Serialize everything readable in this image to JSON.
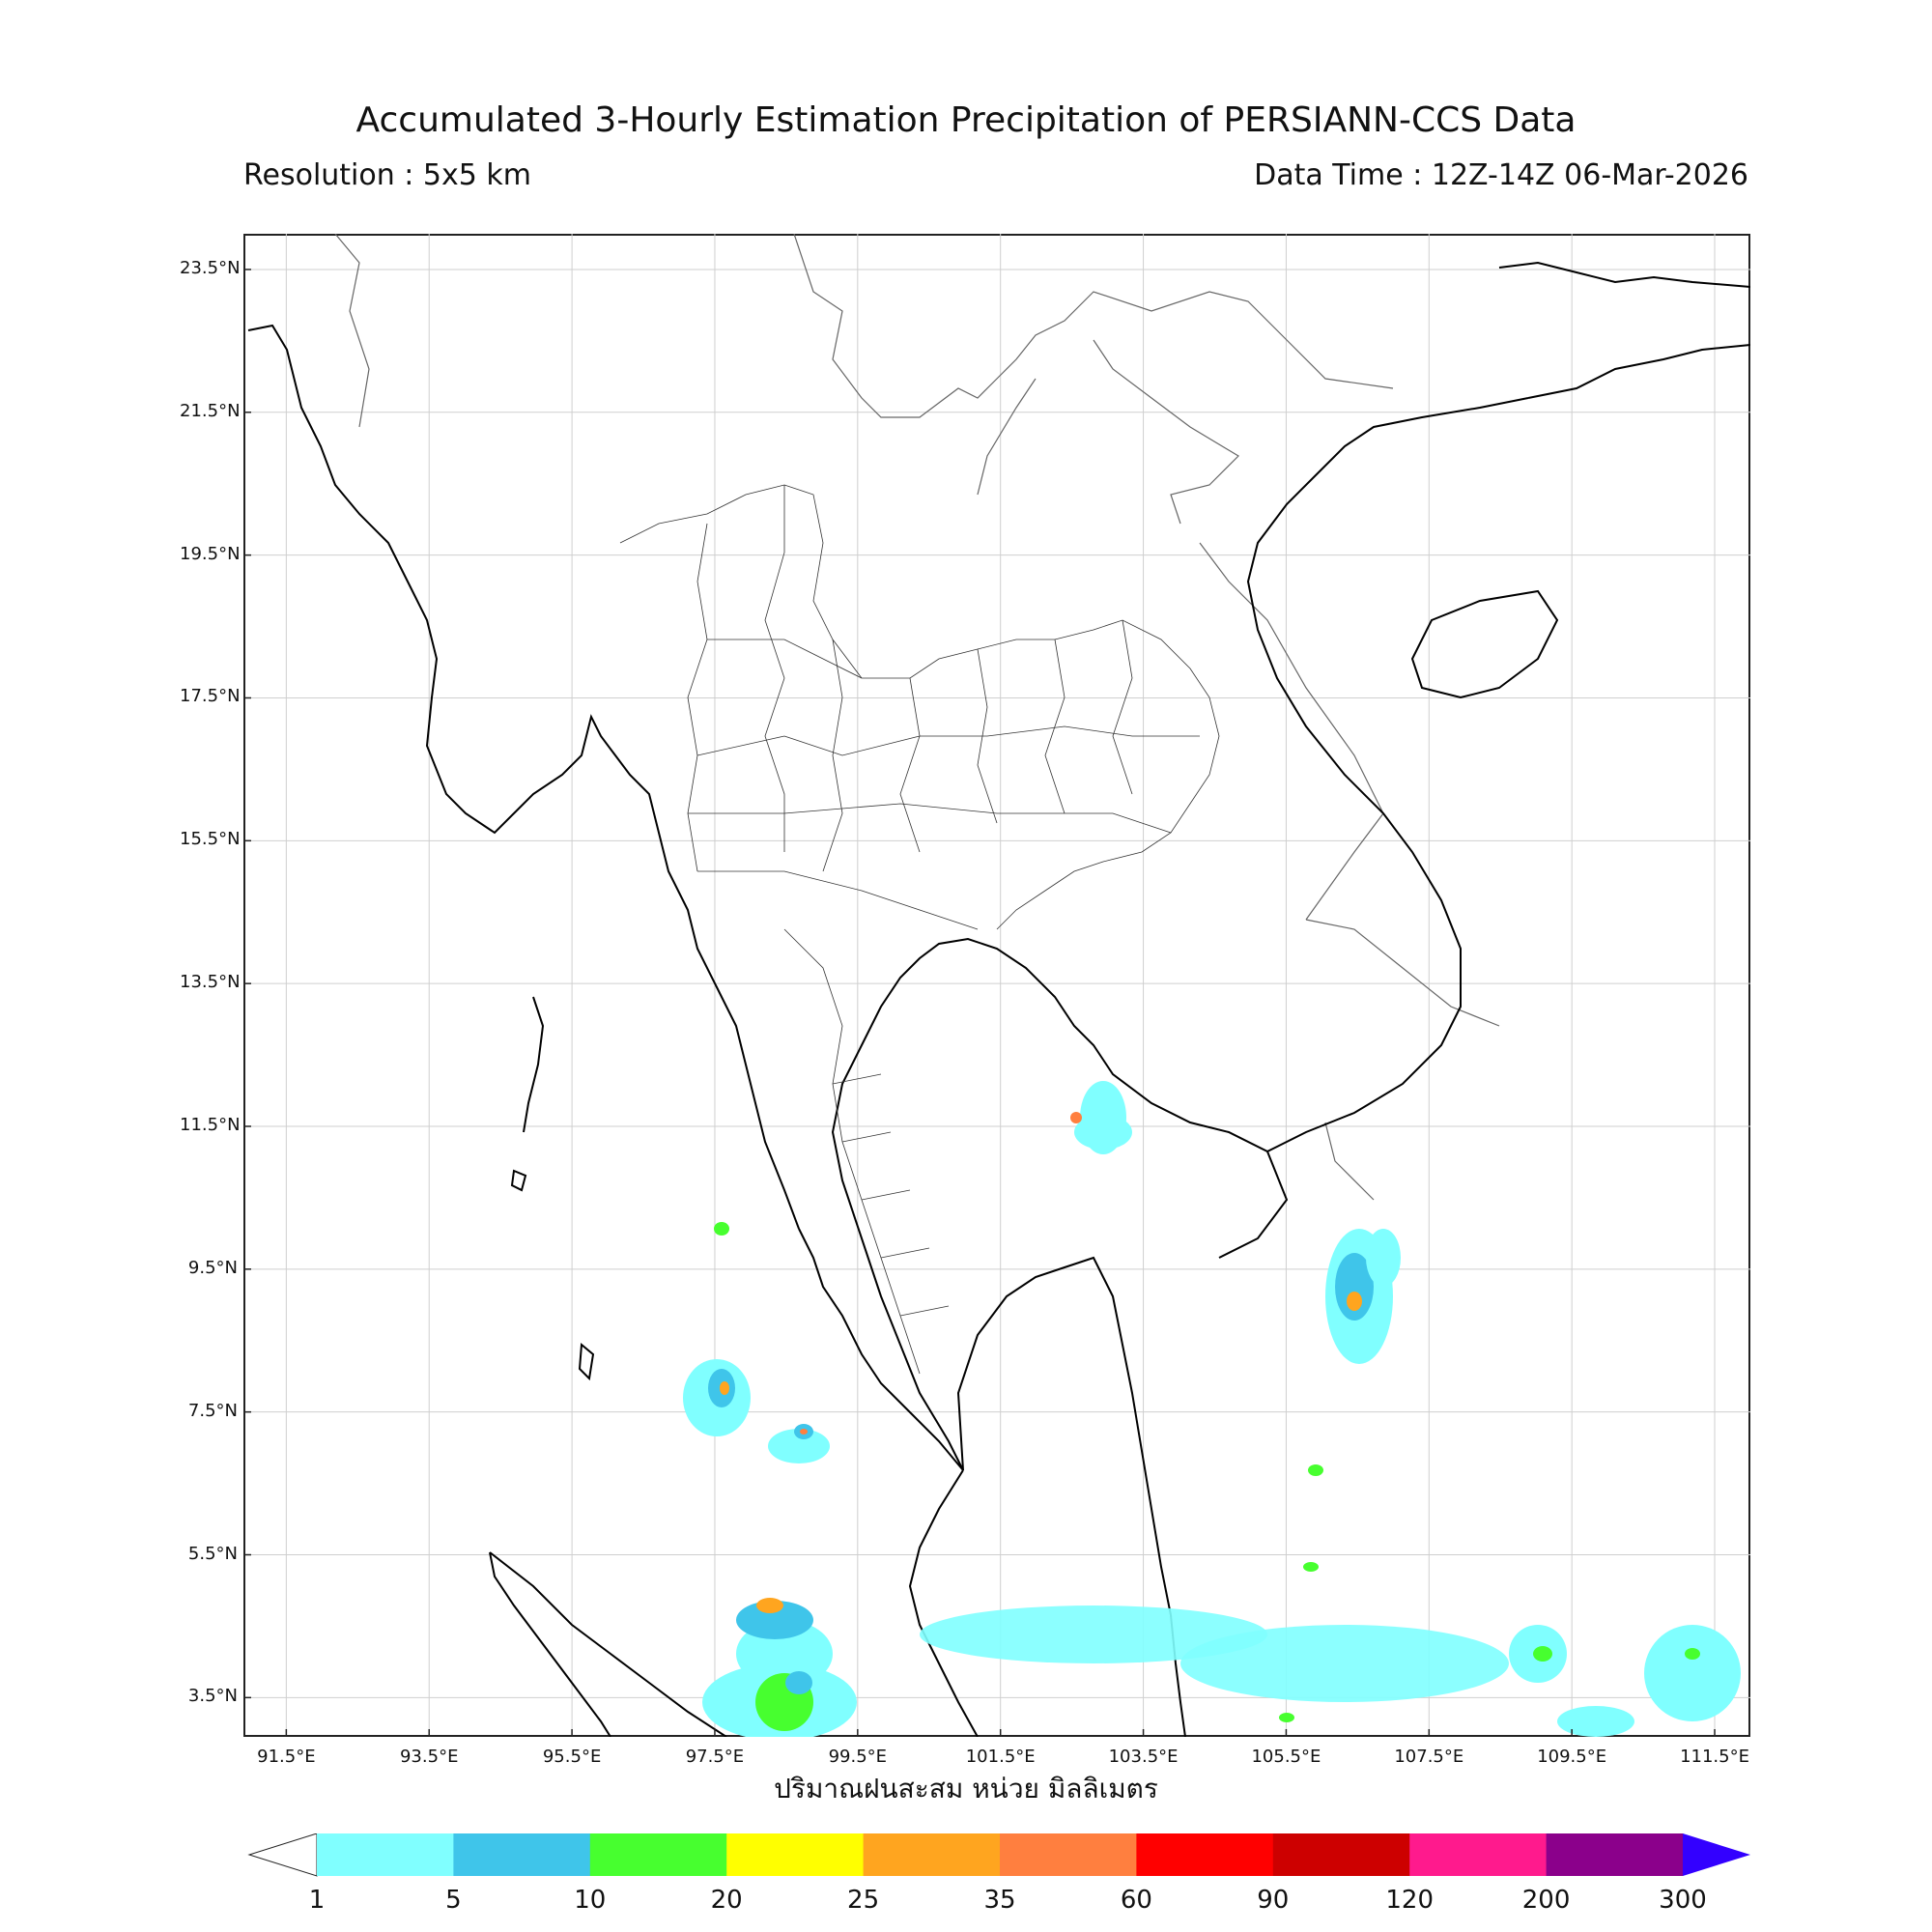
{
  "header": {
    "title": "Accumulated 3-Hourly Estimation Precipitation of PERSIANN-CCS Data",
    "resolution": "Resolution : 5x5 km",
    "data_time": "Data Time : 12Z-14Z 06-Mar-2026"
  },
  "map": {
    "lat_ticks": [
      "23.5°N",
      "21.5°N",
      "19.5°N",
      "17.5°N",
      "15.5°N",
      "13.5°N",
      "11.5°N",
      "9.5°N",
      "7.5°N",
      "5.5°N",
      "3.5°N"
    ],
    "lon_ticks": [
      "91.5°E",
      "93.5°E",
      "95.5°E",
      "97.5°E",
      "99.5°E",
      "101.5°E",
      "103.5°E",
      "105.5°E",
      "107.5°E",
      "109.5°E",
      "111.5°E"
    ],
    "x_axis_title": "ปริมาณฝนสะสม หน่วย มิลลิเมตร",
    "lon_range": [
      90.9,
      112.0
    ],
    "lat_range": [
      2.95,
      24.0
    ]
  },
  "colorbar": {
    "labels": [
      "1",
      "5",
      "10",
      "20",
      "25",
      "35",
      "60",
      "90",
      "120",
      "200",
      "300"
    ],
    "colors": [
      "#80ffff",
      "#3fc5ea",
      "#47ff2f",
      "#ffff00",
      "#ffa51f",
      "#ff7f3f",
      "#ff0000",
      "#cd0000",
      "#ff1a8d",
      "#8b008b"
    ],
    "under_color": "#ffffff",
    "over_color": "#3300ff"
  }
}
